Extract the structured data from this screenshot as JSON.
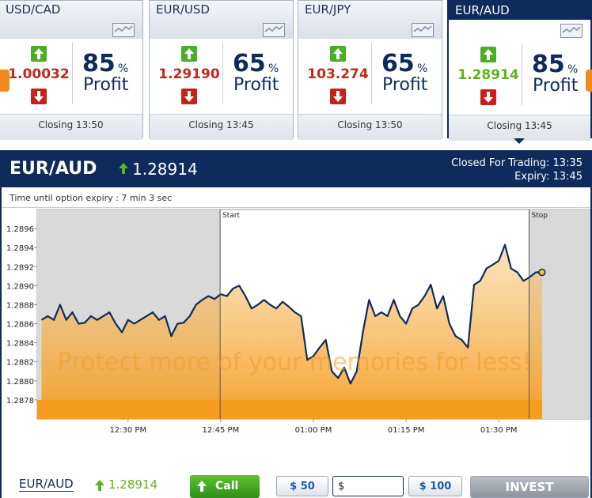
{
  "tabs": [
    {
      "pair": "USD/CAD",
      "price": "1.00032",
      "profit": "85",
      "unit": "%",
      "label": "Profit",
      "closing": "Closing 13:50"
    },
    {
      "pair": "EUR/USD",
      "price": "1.29190",
      "profit": "65",
      "unit": "%",
      "label": "Profit",
      "closing": "Closing 13:45"
    },
    {
      "pair": "EUR/JPY",
      "price": "103.274",
      "profit": "65",
      "unit": "%",
      "label": "Profit",
      "closing": "Closing 13:50"
    },
    {
      "pair": "EUR/AUD",
      "price": "1.28914",
      "profit": "85",
      "unit": "%",
      "label": "Profit",
      "closing": "Closing 13:45",
      "selected": true
    }
  ],
  "panel": {
    "pair": "EUR/AUD",
    "price": "1.28914",
    "status": "Closed For Trading: 13:35",
    "expiry": "Expiry: 13:45",
    "countdown": "Time until option expiry : 7 min 3 sec"
  },
  "chart_data": {
    "type": "line",
    "color": "#0e2b5c",
    "x": [
      736,
      737,
      738,
      739,
      740,
      741,
      742,
      743,
      744,
      745,
      746,
      747,
      748,
      749,
      750,
      751,
      752,
      753,
      754,
      755,
      756,
      757,
      758,
      759,
      760,
      761,
      762,
      763,
      764,
      765,
      766,
      767,
      768,
      769,
      770,
      771,
      772,
      773,
      774,
      775,
      776,
      777,
      778,
      779,
      780,
      781,
      782,
      783,
      784,
      785,
      786,
      787,
      788,
      789,
      790,
      791,
      792,
      793,
      794,
      795,
      796,
      797,
      798,
      799,
      800,
      801,
      802,
      803,
      804,
      805,
      806,
      807,
      808,
      809,
      810,
      811,
      812,
      813,
      814,
      815,
      816,
      817
    ],
    "values": [
      1.28864,
      1.28868,
      1.28864,
      1.2888,
      1.28864,
      1.28872,
      1.2886,
      1.28861,
      1.28868,
      1.28864,
      1.28868,
      1.28872,
      1.2886,
      1.28851,
      1.28864,
      1.2886,
      1.28864,
      1.28868,
      1.28872,
      1.28864,
      1.28868,
      1.28847,
      1.2886,
      1.28861,
      1.28868,
      1.2888,
      1.28885,
      1.28889,
      1.28886,
      1.28891,
      1.28889,
      1.28897,
      1.289,
      1.28889,
      1.28876,
      1.2888,
      1.28885,
      1.2888,
      1.28876,
      1.28883,
      1.28878,
      1.28872,
      1.28868,
      1.28822,
      1.28826,
      1.28835,
      1.28843,
      1.2881,
      1.28803,
      1.28814,
      1.28797,
      1.2881,
      1.28851,
      1.28885,
      1.28868,
      1.28872,
      1.28868,
      1.28885,
      1.28868,
      1.2886,
      1.28876,
      1.2888,
      1.28889,
      1.28901,
      1.28876,
      1.28889,
      1.2886,
      1.28847,
      1.28843,
      1.28835,
      1.28901,
      1.28905,
      1.28918,
      1.28922,
      1.28926,
      1.28943,
      1.28918,
      1.28914,
      1.28905,
      1.28909,
      1.28914,
      1.28914
    ],
    "xlim": [
      735.3,
      824.7
    ],
    "ylim": [
      1.2876,
      1.2898
    ],
    "xticks": [
      {
        "value": 750,
        "label": "12:30 PM"
      },
      {
        "value": 765,
        "label": "12:45 PM"
      },
      {
        "value": 780,
        "label": "01:00 PM"
      },
      {
        "value": 795,
        "label": "01:15 PM"
      },
      {
        "value": 810,
        "label": "01:30 PM"
      }
    ],
    "yticks": [
      1.2878,
      {
        "value": 1.288,
        "label": "1.2880"
      },
      1.2882,
      1.2884,
      1.2886,
      1.2888,
      {
        "value": 1.289,
        "label": "1.2890"
      },
      1.2892,
      1.2894,
      1.2896
    ],
    "markers": [
      {
        "label": "Start",
        "x": 764.9
      },
      {
        "label": "Stop",
        "x": 814.9
      }
    ],
    "watermark": "Protect more of your memories for less!"
  },
  "order": {
    "pair": "EUR/AUD",
    "price": "1.28914",
    "call": "Call",
    "amounts": [
      "$ 50",
      "$",
      "$ 100"
    ],
    "invest": "INVEST"
  }
}
